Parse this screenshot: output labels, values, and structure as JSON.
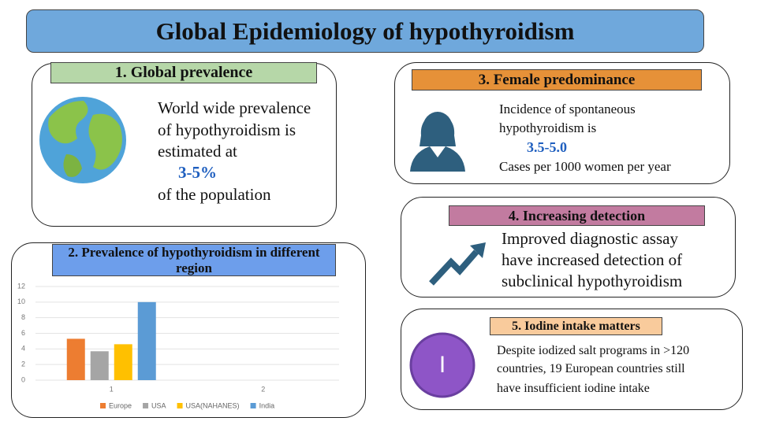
{
  "title": "Global Epidemiology of hypothyroidism",
  "panel1": {
    "heading": "1. Global prevalence",
    "lines": [
      "World wide prevalence",
      "of hypothyroidism is",
      "estimated at"
    ],
    "highlight": "3-5%",
    "after": "of the population"
  },
  "panel3": {
    "heading": "3. Female predominance",
    "lines": [
      "Incidence of spontaneous",
      "hypothyroidism is"
    ],
    "highlight": "3.5-5.0",
    "after": "Cases per 1000 women per year"
  },
  "panel4": {
    "heading": "4. Increasing detection",
    "lines": [
      "Improved diagnostic assay",
      "have increased detection of",
      "subclinical hypothyroidism"
    ]
  },
  "panel5": {
    "heading": "5. Iodine intake matters",
    "icon_label": "I",
    "lines": [
      "Despite iodized salt programs in >120",
      "countries, 19 European countries still",
      "have insufficient iodine intake"
    ]
  },
  "chart_data": {
    "type": "bar",
    "title": "2. Prevalence of hypothyroidism in different region",
    "categories": [
      "1",
      "2"
    ],
    "series": [
      {
        "name": "Europe",
        "color": "#ed7d31",
        "values": [
          5.3,
          null
        ]
      },
      {
        "name": "USA",
        "color": "#a5a5a5",
        "values": [
          3.7,
          null
        ]
      },
      {
        "name": "USA(NAHANES)",
        "color": "#ffc000",
        "values": [
          4.6,
          null
        ]
      },
      {
        "name": "India",
        "color": "#5b9bd5",
        "values": [
          10,
          null
        ]
      }
    ],
    "ylim": [
      0,
      12
    ],
    "yticks": [
      0,
      2,
      4,
      6,
      8,
      10,
      12
    ],
    "grid": true,
    "legend": "bottom"
  }
}
